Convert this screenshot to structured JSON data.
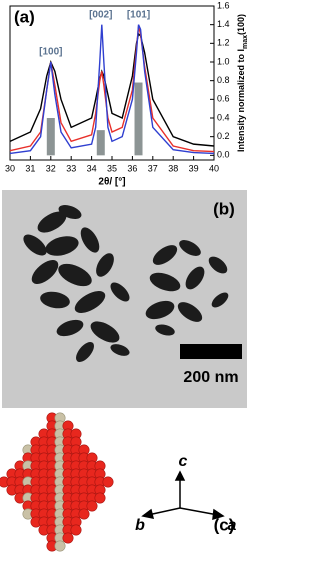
{
  "chart_data": {
    "type": "line",
    "panel_label": "(a)",
    "x_label": "2θ/ [°]",
    "y_label": {
      "text": "Intensity normalized to I",
      "sub": "max",
      "after": "(100)"
    },
    "x": [
      30,
      31,
      31.5,
      31.8,
      32,
      32.2,
      32.5,
      33,
      34,
      34.2,
      34.4,
      34.5,
      34.6,
      34.8,
      35,
      35.5,
      36,
      36.2,
      36.3,
      36.4,
      36.6,
      37,
      38,
      39,
      40
    ],
    "series": [
      {
        "color": "#000000",
        "values": [
          0.15,
          0.25,
          0.5,
          0.85,
          1.0,
          0.9,
          0.6,
          0.3,
          0.4,
          0.6,
          0.82,
          0.9,
          0.85,
          0.65,
          0.45,
          0.4,
          0.85,
          1.2,
          1.3,
          1.28,
          1.1,
          0.6,
          0.2,
          0.12,
          0.1
        ]
      },
      {
        "color": "#e8302a",
        "values": [
          0.05,
          0.1,
          0.25,
          0.7,
          1.0,
          0.75,
          0.35,
          0.15,
          0.22,
          0.45,
          0.8,
          0.9,
          0.75,
          0.4,
          0.25,
          0.3,
          0.7,
          1.15,
          1.38,
          1.3,
          0.95,
          0.4,
          0.1,
          0.05,
          0.04
        ]
      },
      {
        "color": "#2f3fd0",
        "values": [
          0.02,
          0.05,
          0.2,
          0.7,
          1.0,
          0.65,
          0.25,
          0.08,
          0.12,
          0.3,
          1.0,
          1.4,
          1.0,
          0.3,
          0.15,
          0.2,
          0.6,
          1.1,
          1.4,
          1.35,
          0.9,
          0.3,
          0.06,
          0.03,
          0.02
        ]
      }
    ],
    "bars": {
      "x": [
        32,
        34.45,
        36.3
      ],
      "values": [
        0.4,
        0.27,
        0.78
      ],
      "color": "#8c9494"
    },
    "peak_labels": [
      "[100]",
      "[002]",
      "[101]"
    ],
    "xlim": [
      30,
      40
    ],
    "xticks": [
      30,
      31,
      32,
      33,
      34,
      35,
      36,
      37,
      38,
      39,
      40
    ],
    "ylim": [
      -0.05,
      1.6
    ],
    "yticks": [
      {
        "value": 0,
        "label": "0.0"
      },
      0.2,
      0.4,
      0.6,
      0.8,
      {
        "value": 1,
        "label": "1.0"
      },
      1.2,
      1.4,
      1.6
    ],
    "grid": false
  },
  "panel_b": {
    "label": "(b)",
    "scale_bar": "200 nm"
  },
  "panel_c": {
    "label": "(c)",
    "axes": {
      "c": "c",
      "b": "b",
      "a": "a"
    }
  }
}
